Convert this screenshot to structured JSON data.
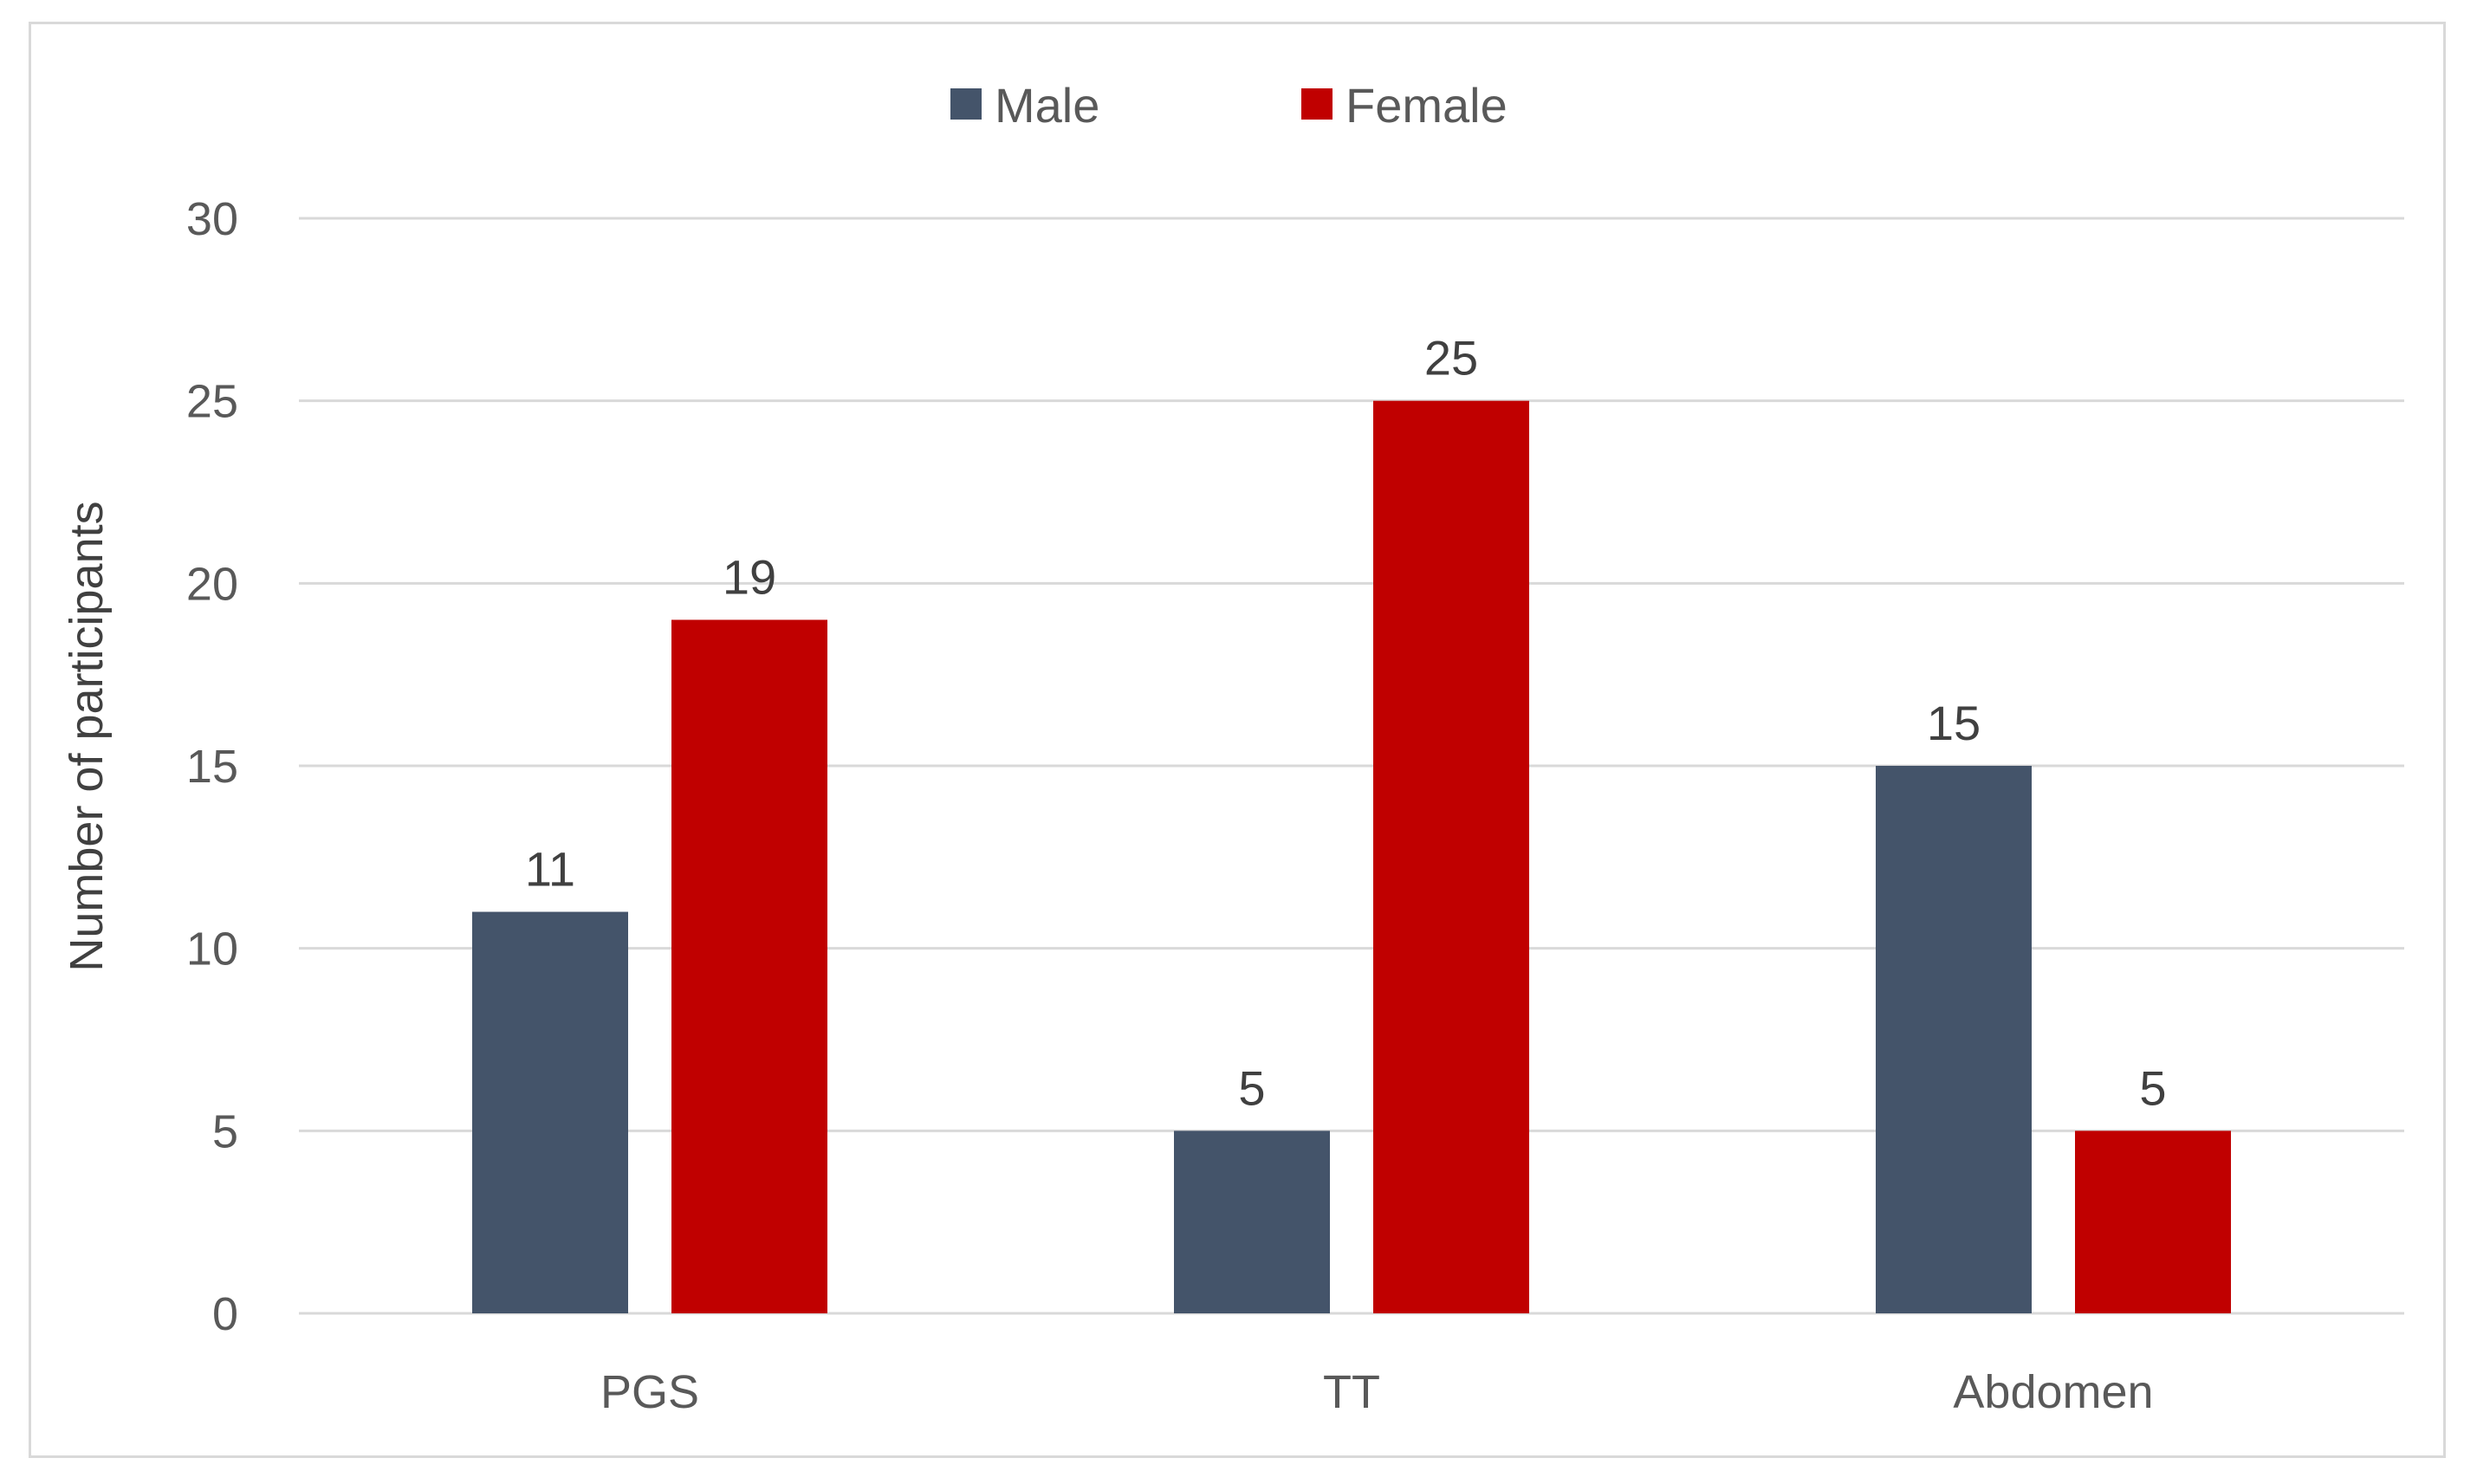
{
  "chart_data": {
    "type": "bar",
    "categories": [
      "PGS",
      "TT",
      "Abdomen"
    ],
    "series": [
      {
        "name": "Male",
        "values": [
          11,
          5,
          15
        ],
        "color": "#44546a"
      },
      {
        "name": "Female",
        "values": [
          19,
          25,
          5
        ],
        "color": "#c00000"
      }
    ],
    "ylabel": "Number of participants",
    "xlabel": "",
    "ylim": [
      0,
      30
    ],
    "yticks": [
      0,
      5,
      10,
      15,
      20,
      25,
      30
    ],
    "grid": true,
    "legend": "top-center",
    "data_labels": true,
    "colors": {
      "gridline": "#d9d9d9",
      "tick_text": "#595959",
      "data_label_text": "#404040"
    }
  }
}
